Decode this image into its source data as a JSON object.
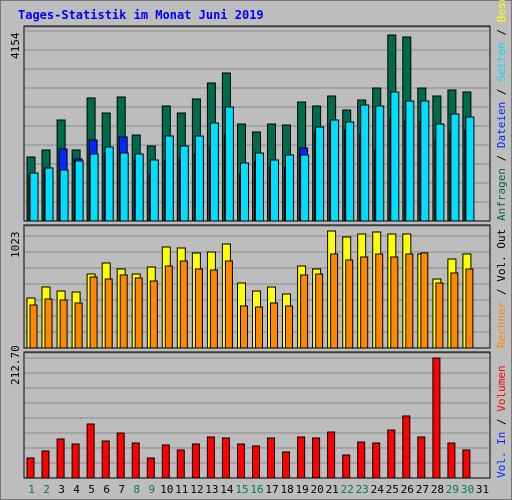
{
  "window": {
    "title": "Tages-Statistik im Monat Juni 2019"
  },
  "colors": {
    "background": "#bdbdbd",
    "grid": "#8a8a8a",
    "hits": "#006a4d",
    "files": "#0029ff",
    "pages": "#00ddff",
    "visits": "#ffff00",
    "sites": "#ff8800",
    "kbytes": "#ff0000",
    "weekday_label": "#000000",
    "weekend_label": "#008040"
  },
  "chart_data": {
    "type": "bar",
    "title": "Tages-Statistik im Monat Juni 2019",
    "days": [
      "1",
      "2",
      "3",
      "4",
      "5",
      "6",
      "7",
      "8",
      "9",
      "10",
      "11",
      "12",
      "13",
      "14",
      "15",
      "16",
      "17",
      "18",
      "19",
      "20",
      "21",
      "22",
      "23",
      "24",
      "25",
      "26",
      "27",
      "28",
      "29",
      "30",
      "31"
    ],
    "weekend_days": [
      "1",
      "2",
      "8",
      "9",
      "15",
      "16",
      "22",
      "23",
      "29",
      "30"
    ],
    "panels": [
      {
        "id": "top",
        "ymax_label": "4154",
        "ymax": 4154,
        "right_labels": [
          {
            "text": "Anfragen",
            "color": "#006a4d"
          },
          {
            "text": " / ",
            "color": "#000000"
          },
          {
            "text": "Dateien",
            "color": "#0029ff"
          },
          {
            "text": " / ",
            "color": "#000000"
          },
          {
            "text": "Seiten",
            "color": "#00ddff"
          },
          {
            "text": " / ",
            "color": "#000000"
          },
          {
            "text": "Besuche",
            "color": "#ffff00"
          }
        ],
        "series": [
          {
            "name": "Anfragen",
            "values": [
              1400,
              1550,
              2210,
              1570,
              2700,
              2370,
              2720,
              1880,
              1640,
              2530,
              2370,
              2690,
              3030,
              3250,
              2140,
              1960,
              2140,
              2100,
              2620,
              2520,
              2750,
              2450,
              2650,
              2920,
              4080,
              4050,
              2920,
              2740,
              2890,
              2830,
              0
            ]
          },
          {
            "name": "Dateien",
            "values": [
              1000,
              1150,
              1580,
              1360,
              1790,
              1500,
              1850,
              1340,
              1020,
              1350,
              1380,
              1470,
              1620,
              1880,
              1040,
              1290,
              1190,
              1180,
              1600,
              1960,
              2160,
              1990,
              1920,
              1570,
              2260,
              2190,
              2170,
              1770,
              1960,
              2000,
              0
            ]
          },
          {
            "name": "Seiten",
            "values": [
              1050,
              1160,
              1120,
              1310,
              1480,
              1620,
              1490,
              1470,
              1340,
              1870,
              1650,
              1860,
              2150,
              2500,
              1280,
              1490,
              1330,
              1440,
              1460,
              2060,
              2220,
              2170,
              2560,
              2530,
              2840,
              2640,
              2630,
              2130,
              2360,
              2290,
              0
            ]
          }
        ]
      },
      {
        "id": "middle",
        "ymax_label": "1023",
        "ymax": 1023,
        "right_labels": [
          {
            "text": "Rechner",
            "color": "#ff8800"
          },
          {
            "text": " / ",
            "color": "#000000"
          },
          {
            "text": "Vol. Out",
            "color": "#000000"
          }
        ],
        "series": [
          {
            "name": "Besuche",
            "values": [
              440,
              530,
              500,
              490,
              650,
              740,
              690,
              650,
              710,
              880,
              870,
              830,
              840,
              910,
              570,
              500,
              530,
              470,
              720,
              690,
              1020,
              970,
              1000,
              1010,
              1000,
              1000,
              820,
              600,
              780,
              820,
              0
            ]
          },
          {
            "name": "Rechner",
            "values": [
              380,
              430,
              420,
              390,
              620,
              600,
              640,
              610,
              590,
              720,
              760,
              690,
              680,
              760,
              370,
              360,
              390,
              370,
              640,
              650,
              820,
              770,
              800,
              820,
              800,
              820,
              830,
              570,
              660,
              690,
              0
            ]
          }
        ]
      },
      {
        "id": "bottom",
        "ymax_label": "212.70",
        "ymax": 212.7,
        "right_labels": [
          {
            "text": "Vol. In",
            "color": "#0029ff"
          },
          {
            "text": " / ",
            "color": "#000000"
          },
          {
            "text": "Volumen",
            "color": "#ff0000"
          }
        ],
        "series": [
          {
            "name": "Volumen",
            "values": [
              35,
              48,
              70,
              60,
              95,
              65,
              80,
              62,
              35,
              58,
              50,
              60,
              72,
              71,
              60,
              56,
              71,
              46,
              72,
              71,
              82,
              40,
              63,
              62,
              85,
              110,
              73,
              212,
              62,
              50,
              0
            ]
          }
        ]
      }
    ]
  }
}
